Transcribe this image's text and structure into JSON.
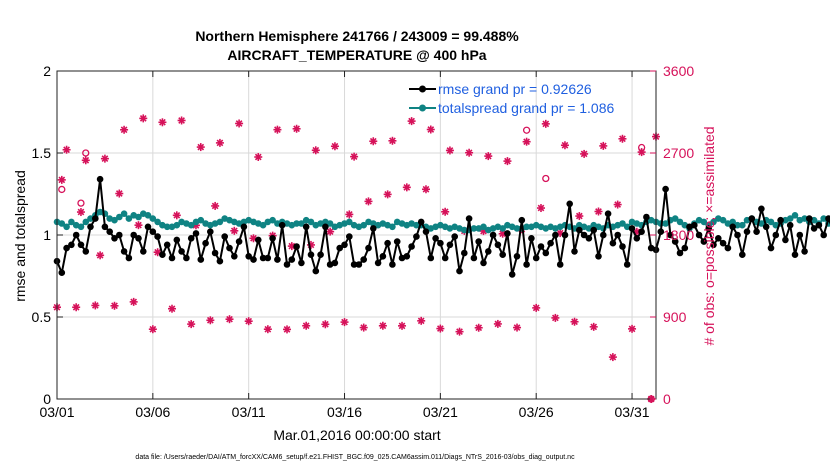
{
  "colors": {
    "rmse": "#000000",
    "spread": "#0f8383",
    "obs": "#d6125a",
    "legend_text": "#1f5fe0",
    "grid": "#d9d9d9"
  },
  "chart_data": {
    "type": "line",
    "title_line1": "Northern Hemisphere 241766 / 243009 = 99.488%",
    "title_line2": "AIRCRAFT_TEMPERATURE @ 400 hPa",
    "xlabel": "Mar.01,2016 00:00:00 start",
    "ylabel_left": "rmse and totalspread",
    "ylabel_right": "# of obs: o=possible; ×=assimilated",
    "footer": "data file: /Users/raeder/DAI/ATM_forcXX/CAM6_setup/f.e21.FHIST_BGC.f09_025.CAM6assim.011/Diags_NTrS_2016-03/obs_diag_output.nc",
    "legend": [
      {
        "key": "rmse",
        "label": "rmse grand pr = 0.92626"
      },
      {
        "key": "spread",
        "label": "totalspread grand pr = 1.086"
      }
    ],
    "xlim": [
      0,
      31.25
    ],
    "ylim_left": [
      0,
      2
    ],
    "ylim_right": [
      0,
      3600
    ],
    "x_ticks": [
      {
        "v": 0,
        "label": "03/01"
      },
      {
        "v": 5,
        "label": "03/06"
      },
      {
        "v": 10,
        "label": "03/11"
      },
      {
        "v": 15,
        "label": "03/16"
      },
      {
        "v": 20,
        "label": "03/21"
      },
      {
        "v": 25,
        "label": "03/26"
      },
      {
        "v": 30,
        "label": "03/31"
      }
    ],
    "y_ticks_left": [
      {
        "v": 0,
        "label": "0"
      },
      {
        "v": 0.5,
        "label": "0.5"
      },
      {
        "v": 1,
        "label": "1"
      },
      {
        "v": 1.5,
        "label": "1.5"
      },
      {
        "v": 2,
        "label": "2"
      }
    ],
    "y_ticks_right": [
      {
        "v": 0,
        "label": "0"
      },
      {
        "v": 900,
        "label": "900"
      },
      {
        "v": 1800,
        "label": "1800"
      },
      {
        "v": 2700,
        "label": "2700"
      },
      {
        "v": 3600,
        "label": "3600"
      }
    ],
    "time_step_hours": 6,
    "rmse": [
      0.84,
      0.77,
      0.92,
      0.94,
      1.0,
      0.94,
      0.9,
      1.05,
      1.1,
      1.34,
      1.05,
      1.02,
      0.98,
      1.0,
      0.9,
      0.86,
      1.0,
      0.98,
      0.9,
      1.05,
      1.02,
      0.99,
      0.88,
      0.94,
      0.86,
      0.97,
      0.9,
      0.86,
      0.98,
      1.01,
      0.85,
      0.95,
      1.02,
      0.89,
      0.84,
      0.99,
      0.92,
      0.87,
      0.96,
      1.05,
      0.87,
      0.85,
      0.97,
      0.86,
      0.86,
      0.98,
      0.85,
      1.06,
      0.82,
      0.85,
      0.93,
      0.83,
      1.05,
      0.88,
      0.78,
      0.88,
      1.05,
      0.82,
      0.83,
      0.92,
      0.94,
      0.99,
      0.82,
      0.82,
      0.85,
      0.92,
      1.04,
      0.83,
      0.87,
      0.95,
      0.82,
      0.96,
      0.86,
      0.87,
      0.93,
      0.99,
      1.08,
      1.02,
      0.86,
      0.98,
      0.95,
      0.86,
      0.94,
      0.99,
      0.78,
      0.89,
      1.1,
      0.86,
      0.96,
      0.83,
      0.9,
      1.0,
      0.94,
      0.88,
      1.01,
      0.76,
      0.87,
      1.09,
      0.82,
      0.98,
      0.86,
      0.93,
      0.89,
      0.95,
      1.0,
      0.82,
      1.0,
      1.19,
      0.9,
      1.03,
      1.0,
      0.98,
      1.03,
      0.87,
      1.0,
      1.13,
      0.95,
      1.0,
      0.93,
      0.82,
      1.04,
      0.98,
      1.02,
      1.11,
      0.92,
      0.91,
      1.02,
      1.28,
      1.0,
      0.96,
      0.89,
      0.92,
      1.05,
      1.06,
      1.0,
      0.96,
      1.04,
      0.94,
      0.98,
      0.95,
      0.92,
      1.05,
      1.0,
      0.88,
      1.02,
      1.1,
      1.02,
      1.16,
      1.05,
      0.92,
      1.0,
      1.09,
      0.97,
      1.06,
      0.88,
      1.0,
      0.9,
      1.1,
      1.04,
      1.06,
      1.0,
      1.1,
      1.03,
      1.13,
      0.98,
      0.96,
      1.01,
      1.07,
      1.0,
      0.96,
      0.92,
      0.87,
      0.95,
      0.84,
      1.0,
      1.02,
      0.94,
      1.0,
      1.02,
      0.98,
      1.03,
      0.89,
      1.02,
      0.9,
      0.96,
      0.99,
      1.01
    ],
    "totalspread": [
      1.08,
      1.07,
      1.05,
      1.08,
      1.06,
      1.05,
      1.08,
      1.1,
      1.12,
      1.14,
      1.13,
      1.1,
      1.09,
      1.11,
      1.13,
      1.1,
      1.12,
      1.11,
      1.13,
      1.12,
      1.1,
      1.08,
      1.06,
      1.05,
      1.05,
      1.06,
      1.08,
      1.07,
      1.06,
      1.08,
      1.09,
      1.07,
      1.06,
      1.07,
      1.08,
      1.1,
      1.09,
      1.08,
      1.07,
      1.08,
      1.09,
      1.08,
      1.07,
      1.06,
      1.08,
      1.09,
      1.07,
      1.08,
      1.07,
      1.06,
      1.07,
      1.07,
      1.09,
      1.08,
      1.06,
      1.07,
      1.08,
      1.07,
      1.05,
      1.06,
      1.07,
      1.08,
      1.06,
      1.05,
      1.06,
      1.08,
      1.07,
      1.06,
      1.07,
      1.06,
      1.05,
      1.08,
      1.07,
      1.06,
      1.07,
      1.06,
      1.06,
      1.05,
      1.04,
      1.05,
      1.06,
      1.05,
      1.04,
      1.05,
      1.04,
      1.03,
      1.03,
      1.04,
      1.04,
      1.05,
      1.03,
      1.04,
      1.05,
      1.04,
      1.06,
      1.05,
      1.04,
      1.04,
      1.05,
      1.05,
      1.06,
      1.05,
      1.04,
      1.05,
      1.04,
      1.05,
      1.06,
      1.05,
      1.04,
      1.06,
      1.05,
      1.04,
      1.06,
      1.05,
      1.04,
      1.06,
      1.05,
      1.06,
      1.07,
      1.05,
      1.08,
      1.07,
      1.06,
      1.08,
      1.09,
      1.08,
      1.07,
      1.07,
      1.09,
      1.1,
      1.08,
      1.06,
      1.04,
      1.07,
      1.09,
      1.08,
      1.06,
      1.08,
      1.1,
      1.09,
      1.07,
      1.08,
      1.06,
      1.06,
      1.09,
      1.1,
      1.08,
      1.07,
      1.09,
      1.08,
      1.06,
      1.07,
      1.09,
      1.1,
      1.12,
      1.09,
      1.1,
      1.08,
      1.09,
      1.07,
      1.1,
      1.07,
      1.1,
      1.08,
      1.09,
      1.1,
      1.07,
      1.08,
      1.06,
      1.09,
      1.07,
      1.08,
      1.1,
      1.11,
      1.09,
      1.1,
      1.08,
      1.07,
      1.09,
      1.08,
      1.11,
      1.1,
      1.09,
      1.1,
      1.09,
      1.1,
      1.11
    ],
    "obs_assimilated": [
      [
        0,
        1007
      ],
      [
        0.25,
        2405
      ],
      [
        0.5,
        2736
      ],
      [
        1,
        1007
      ],
      [
        1.25,
        2052
      ],
      [
        1.5,
        2620
      ],
      [
        2,
        1027
      ],
      [
        2.25,
        1577
      ],
      [
        2.5,
        2638
      ],
      [
        3,
        1023
      ],
      [
        3.25,
        2255
      ],
      [
        3.5,
        2955
      ],
      [
        4,
        1066
      ],
      [
        4.25,
        1908
      ],
      [
        4.5,
        3080
      ],
      [
        5,
        766
      ],
      [
        5.25,
        1611
      ],
      [
        5.5,
        3037
      ],
      [
        6,
        991
      ],
      [
        6.25,
        2016
      ],
      [
        6.5,
        3057
      ],
      [
        7,
        822
      ],
      [
        7.25,
        1906
      ],
      [
        7.5,
        2765
      ],
      [
        8,
        864
      ],
      [
        8.25,
        2119
      ],
      [
        8.5,
        2811
      ],
      [
        9,
        876
      ],
      [
        9.25,
        1846
      ],
      [
        9.5,
        3024
      ],
      [
        10,
        854
      ],
      [
        10.25,
        1764
      ],
      [
        10.5,
        2656
      ],
      [
        11,
        766
      ],
      [
        11.25,
        1793
      ],
      [
        11.5,
        2956
      ],
      [
        12,
        764
      ],
      [
        12.25,
        1678
      ],
      [
        12.5,
        2966
      ],
      [
        13,
        804
      ],
      [
        13.25,
        1691
      ],
      [
        13.5,
        2730
      ],
      [
        14,
        820
      ],
      [
        14.25,
        1837
      ],
      [
        14.5,
        2774
      ],
      [
        15,
        844
      ],
      [
        15.25,
        2026
      ],
      [
        15.5,
        2660
      ],
      [
        16,
        784
      ],
      [
        16.25,
        2169
      ],
      [
        16.5,
        2829
      ],
      [
        17,
        804
      ],
      [
        17.25,
        2246
      ],
      [
        17.5,
        2834
      ],
      [
        18,
        803
      ],
      [
        18.25,
        2323
      ],
      [
        18.5,
        3050
      ],
      [
        19,
        858
      ],
      [
        19.25,
        2302
      ],
      [
        19.5,
        2958
      ],
      [
        20,
        773
      ],
      [
        20.25,
        2055
      ],
      [
        20.5,
        2728
      ],
      [
        21,
        739
      ],
      [
        21.25,
        1845
      ],
      [
        21.5,
        2703
      ],
      [
        22,
        782
      ],
      [
        22.25,
        1843
      ],
      [
        22.5,
        2666
      ],
      [
        23,
        824
      ],
      [
        23.25,
        1814
      ],
      [
        23.5,
        2611
      ],
      [
        24,
        784
      ],
      [
        24.25,
        1863
      ],
      [
        24.5,
        2824
      ],
      [
        25,
        1000
      ],
      [
        25.25,
        2096
      ],
      [
        25.5,
        3020
      ],
      [
        26,
        890
      ],
      [
        26.25,
        1821
      ],
      [
        26.5,
        2785
      ],
      [
        27,
        848
      ],
      [
        27.25,
        2008
      ],
      [
        27.5,
        2690
      ],
      [
        28,
        792
      ],
      [
        28.25,
        2058
      ],
      [
        28.5,
        2778
      ],
      [
        29,
        460
      ],
      [
        29.25,
        2134
      ],
      [
        29.5,
        2856
      ],
      [
        30,
        770
      ],
      [
        30.25,
        1835
      ],
      [
        30.5,
        2710
      ],
      [
        31,
        0
      ],
      [
        31.25,
        2880
      ]
    ],
    "obs_possible_extra": [
      [
        0.25,
        2300
      ],
      [
        1.25,
        2150
      ],
      [
        1.5,
        2700
      ],
      [
        24.5,
        2950
      ],
      [
        25.5,
        2420
      ],
      [
        30.5,
        2760
      ],
      [
        31,
        0
      ]
    ]
  }
}
